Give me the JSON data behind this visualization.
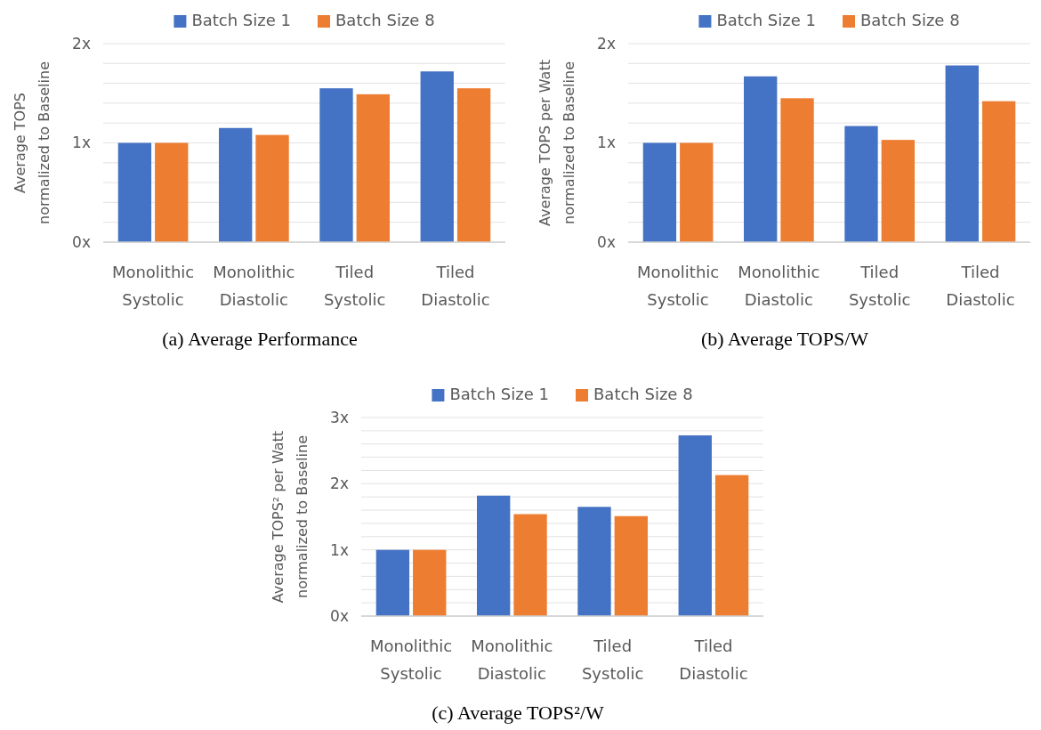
{
  "chart_data": [
    {
      "type": "bar",
      "title": "(a) Average Performance",
      "ylabel": "Average TOPS\nnormalized to Baseline",
      "categories": [
        "Monolithic Systolic",
        "Monolithic Diastolic",
        "Tiled Systolic",
        "Tiled Diastolic"
      ],
      "series": [
        {
          "name": "Batch Size 1",
          "color": "#4472c4",
          "values": [
            1,
            1.15,
            1.55,
            1.72
          ]
        },
        {
          "name": "Batch Size 8",
          "color": "#ed7d31",
          "values": [
            1,
            1.08,
            1.49,
            1.55
          ]
        }
      ],
      "ylim": [
        0,
        2
      ],
      "yticks": [
        {
          "value": 0,
          "label": "0x"
        },
        {
          "value": 0.2,
          "label": null
        },
        {
          "value": 0.4,
          "label": null
        },
        {
          "value": 0.6,
          "label": null
        },
        {
          "value": 0.8,
          "label": null
        },
        {
          "value": 1,
          "label": "1x"
        },
        {
          "value": 1.2,
          "label": null
        },
        {
          "value": 1.4,
          "label": null
        },
        {
          "value": 1.6,
          "label": null
        },
        {
          "value": 1.8,
          "label": null
        },
        {
          "value": 2,
          "label": "2x"
        }
      ],
      "grid": "y",
      "legend": "top"
    },
    {
      "type": "bar",
      "title": "(b) Average TOPS/W",
      "ylabel": "Average TOPS per Watt\nnormalized to Baseline",
      "categories": [
        "Monolithic Systolic",
        "Monolithic Diastolic",
        "Tiled Systolic",
        "Tiled Diastolic"
      ],
      "series": [
        {
          "name": "Batch Size 1",
          "color": "#4472c4",
          "values": [
            1,
            1.67,
            1.17,
            1.78
          ]
        },
        {
          "name": "Batch Size 8",
          "color": "#ed7d31",
          "values": [
            1,
            1.45,
            1.03,
            1.42
          ]
        }
      ],
      "ylim": [
        0,
        2
      ],
      "yticks": [
        {
          "value": 0,
          "label": "0x"
        },
        {
          "value": 0.2,
          "label": null
        },
        {
          "value": 0.4,
          "label": null
        },
        {
          "value": 0.6,
          "label": null
        },
        {
          "value": 0.8,
          "label": null
        },
        {
          "value": 1,
          "label": "1x"
        },
        {
          "value": 1.2,
          "label": null
        },
        {
          "value": 1.4,
          "label": null
        },
        {
          "value": 1.6,
          "label": null
        },
        {
          "value": 1.8,
          "label": null
        },
        {
          "value": 2,
          "label": "2x"
        }
      ],
      "grid": "y",
      "legend": "top"
    },
    {
      "type": "bar",
      "title": "(c) Average TOPS²/W",
      "ylabel": "Average TOPS² per Watt\nnormalized to Baseline",
      "categories": [
        "Monolithic Systolic",
        "Monolithic Diastolic",
        "Tiled Systolic",
        "Tiled Diastolic"
      ],
      "series": [
        {
          "name": "Batch Size 1",
          "color": "#4472c4",
          "values": [
            1,
            1.82,
            1.65,
            2.73
          ]
        },
        {
          "name": "Batch Size 8",
          "color": "#ed7d31",
          "values": [
            1,
            1.54,
            1.51,
            2.13
          ]
        }
      ],
      "ylim": [
        0,
        3
      ],
      "yticks": [
        {
          "value": 0,
          "label": "0x"
        },
        {
          "value": 0.2,
          "label": null
        },
        {
          "value": 0.4,
          "label": null
        },
        {
          "value": 0.6,
          "label": null
        },
        {
          "value": 0.8,
          "label": null
        },
        {
          "value": 1,
          "label": "1x"
        },
        {
          "value": 1.2,
          "label": null
        },
        {
          "value": 1.4,
          "label": null
        },
        {
          "value": 1.6,
          "label": null
        },
        {
          "value": 1.8,
          "label": null
        },
        {
          "value": 2,
          "label": "2x"
        },
        {
          "value": 2.2,
          "label": null
        },
        {
          "value": 2.4,
          "label": null
        },
        {
          "value": 2.6,
          "label": null
        },
        {
          "value": 2.8,
          "label": null
        },
        {
          "value": 3,
          "label": "3x"
        }
      ],
      "grid": "y",
      "legend": "top"
    }
  ]
}
